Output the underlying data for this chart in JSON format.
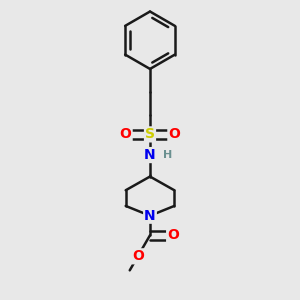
{
  "background_color": "#e8e8e8",
  "bond_color": "#1a1a1a",
  "bond_width": 1.8,
  "atom_colors": {
    "N": "#0000ee",
    "O": "#ff0000",
    "S": "#cccc00",
    "H": "#6a9090",
    "C": "#000000"
  },
  "figsize": [
    3.0,
    3.0
  ],
  "dpi": 100
}
